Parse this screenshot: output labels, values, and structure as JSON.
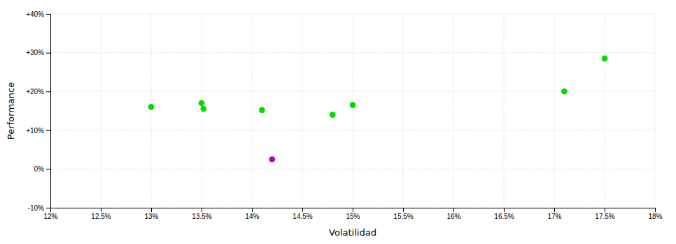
{
  "chart_data": {
    "type": "scatter",
    "xlabel": "Volatilidad",
    "ylabel": "Performance",
    "series": [
      {
        "color": "#00dd00",
        "marker": "circle",
        "x": [
          13.0,
          13.5,
          13.52,
          14.1,
          14.8,
          15.0,
          17.1,
          17.5
        ],
        "values": [
          16.0,
          17.0,
          15.5,
          15.2,
          14.0,
          16.5,
          20.0,
          28.5
        ]
      },
      {
        "color": "#bb00bb",
        "marker": "circle",
        "x": [
          14.2
        ],
        "values": [
          2.5
        ]
      }
    ],
    "xlim": [
      12.0,
      18.0
    ],
    "ylim": [
      -10.0,
      40.0
    ],
    "xticks": [
      {
        "value": 12.0,
        "label": "12%"
      },
      {
        "value": 12.5,
        "label": "12.5%"
      },
      {
        "value": 13.0,
        "label": "13%"
      },
      {
        "value": 13.5,
        "label": "13.5%"
      },
      {
        "value": 14.0,
        "label": "14%"
      },
      {
        "value": 14.5,
        "label": "14.5%"
      },
      {
        "value": 15.0,
        "label": "15%"
      },
      {
        "value": 15.5,
        "label": "15.5%"
      },
      {
        "value": 16.0,
        "label": "16%"
      },
      {
        "value": 16.5,
        "label": "16.5%"
      },
      {
        "value": 17.0,
        "label": "17%"
      },
      {
        "value": 17.5,
        "label": "17.5%"
      },
      {
        "value": 18.0,
        "label": "18%"
      }
    ],
    "yticks": [
      {
        "value": -10,
        "label": "-10%"
      },
      {
        "value": 0,
        "label": "0%"
      },
      {
        "value": 10,
        "label": "+10%"
      },
      {
        "value": 20,
        "label": "+20%"
      },
      {
        "value": 30,
        "label": "+30%"
      },
      {
        "value": 40,
        "label": "+40%"
      }
    ],
    "grid": true
  }
}
